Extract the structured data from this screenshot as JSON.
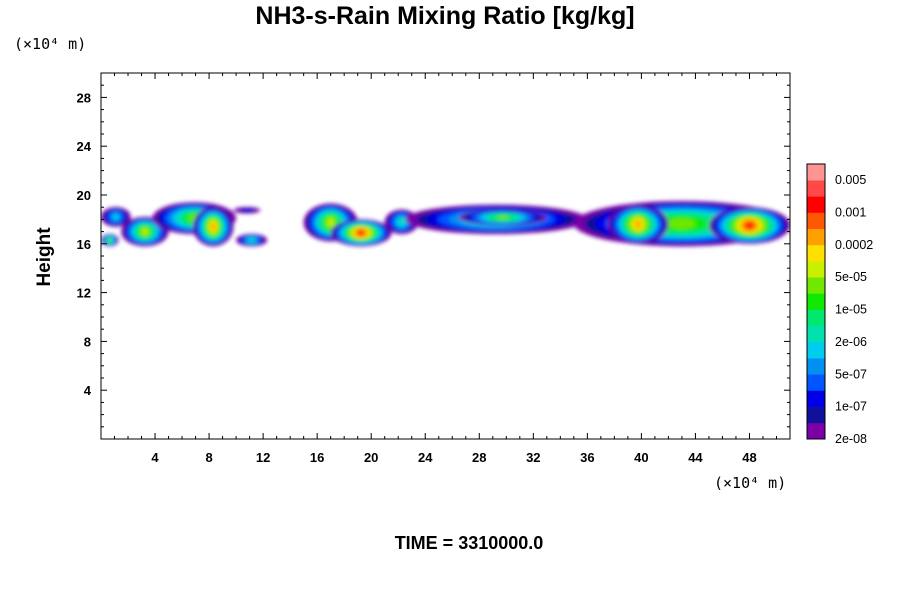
{
  "chart_data": {
    "type": "heatmap",
    "title": "NH3-s-Rain Mixing Ratio [kg/kg]",
    "xlabel": "",
    "ylabel": "Height",
    "x_unit": "(×10⁴ m)",
    "y_unit": "(×10⁴ m)",
    "xlim": [
      0,
      51
    ],
    "ylim": [
      0,
      30
    ],
    "x_ticks": [
      4,
      8,
      12,
      16,
      20,
      24,
      28,
      32,
      36,
      40,
      44,
      48
    ],
    "y_ticks": [
      4,
      8,
      12,
      16,
      20,
      24,
      28
    ],
    "footer": "TIME = 3310000.0",
    "colorbar": {
      "labels": [
        "0.005",
        "0.001",
        "0.0002",
        "5e-05",
        "1e-05",
        "2e-06",
        "5e-07",
        "1e-07",
        "2e-08"
      ],
      "colors": [
        "#7a00a8",
        "#10109a",
        "#0000e6",
        "#0055ff",
        "#0090f0",
        "#00ccf0",
        "#00e0b0",
        "#00e870",
        "#10e800",
        "#70e800",
        "#c8f000",
        "#ffe000",
        "#ffa000",
        "#ff5800",
        "#ff0000",
        "#ff4848",
        "#ff9494"
      ]
    },
    "clouds": [
      {
        "x0": 0,
        "x1": 2.2,
        "y0": 17.4,
        "y1": 19.0,
        "level": 5
      },
      {
        "x0": 0,
        "x1": 1.3,
        "y0": 15.8,
        "y1": 16.8,
        "level": 9
      },
      {
        "x0": 1.5,
        "x1": 5.0,
        "y0": 15.8,
        "y1": 18.2,
        "level": 10
      },
      {
        "x0": 3.8,
        "x1": 10.0,
        "y0": 16.8,
        "y1": 19.4,
        "level": 9
      },
      {
        "x0": 6.8,
        "x1": 9.8,
        "y0": 15.8,
        "y1": 19.0,
        "level": 12
      },
      {
        "x0": 9.8,
        "x1": 11.8,
        "y0": 18.5,
        "y1": 19.0,
        "level": 2
      },
      {
        "x0": 10.0,
        "x1": 12.3,
        "y0": 15.8,
        "y1": 16.8,
        "level": 6
      },
      {
        "x0": 15.0,
        "x1": 19.0,
        "y0": 16.2,
        "y1": 19.3,
        "level": 10
      },
      {
        "x0": 17.0,
        "x1": 21.5,
        "y0": 15.8,
        "y1": 18.0,
        "level": 14
      },
      {
        "x0": 21.0,
        "x1": 23.5,
        "y0": 16.8,
        "y1": 18.8,
        "level": 6
      },
      {
        "x0": 22.5,
        "x1": 36.0,
        "y0": 16.8,
        "y1": 19.2,
        "level": 7
      },
      {
        "x0": 26.5,
        "x1": 33.0,
        "y0": 17.5,
        "y1": 18.8,
        "level": 9
      },
      {
        "x0": 35.0,
        "x1": 51.0,
        "y0": 15.8,
        "y1": 19.5,
        "level": 9
      },
      {
        "x0": 37.5,
        "x1": 42.0,
        "y0": 16.0,
        "y1": 19.2,
        "level": 12
      },
      {
        "x0": 45.0,
        "x1": 51.0,
        "y0": 16.0,
        "y1": 19.0,
        "level": 14
      }
    ]
  }
}
